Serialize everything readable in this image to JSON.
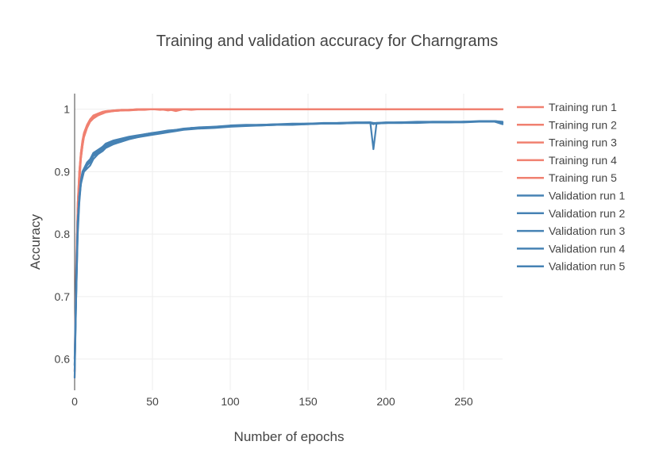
{
  "chart_data": {
    "type": "line",
    "title": "Training and validation accuracy for Charngrams",
    "xlabel": "Number of epochs",
    "ylabel": "Accuracy",
    "xlim": [
      0,
      275
    ],
    "ylim": [
      0.55,
      1.025
    ],
    "xticks": [
      0,
      50,
      100,
      150,
      200,
      250
    ],
    "xtick_labels": [
      "0",
      "50",
      "100",
      "150",
      "200",
      "250"
    ],
    "yticks": [
      0.6,
      0.7,
      0.8,
      0.9,
      1
    ],
    "ytick_labels": [
      "0.6",
      "0.7",
      "0.8",
      "0.9",
      "1"
    ],
    "grid": true,
    "legend_position": "right",
    "colors": {
      "training": "#f08070",
      "validation": "#4682b4"
    },
    "x": [
      0,
      1,
      2,
      3,
      4,
      5,
      6,
      8,
      10,
      12,
      15,
      18,
      20,
      25,
      30,
      35,
      40,
      45,
      50,
      55,
      60,
      65,
      70,
      75,
      80,
      90,
      100,
      110,
      120,
      130,
      140,
      150,
      160,
      170,
      180,
      190,
      192,
      194,
      200,
      210,
      220,
      230,
      240,
      250,
      260,
      270,
      275
    ],
    "series": [
      {
        "name": "Training run 1",
        "values": [
          0.57,
          0.72,
          0.83,
          0.88,
          0.92,
          0.94,
          0.955,
          0.97,
          0.98,
          0.985,
          0.99,
          0.993,
          0.995,
          0.997,
          0.998,
          0.998,
          0.999,
          0.999,
          1.0,
          0.999,
          1.0,
          1.0,
          1.0,
          1.0,
          1.0,
          1.0,
          1.0,
          1.0,
          1.0,
          1.0,
          1.0,
          1.0,
          1.0,
          1.0,
          1.0,
          1.0,
          1.0,
          1.0,
          1.0,
          1.0,
          1.0,
          1.0,
          1.0,
          1.0,
          1.0,
          1.0,
          1.0
        ]
      },
      {
        "name": "Training run 2",
        "values": [
          0.58,
          0.73,
          0.84,
          0.89,
          0.925,
          0.945,
          0.96,
          0.973,
          0.982,
          0.988,
          0.992,
          0.995,
          0.996,
          0.997,
          0.998,
          0.999,
          0.999,
          1.0,
          1.0,
          1.0,
          0.998,
          1.0,
          1.0,
          1.0,
          1.0,
          1.0,
          1.0,
          1.0,
          1.0,
          1.0,
          1.0,
          1.0,
          1.0,
          1.0,
          1.0,
          1.0,
          1.0,
          1.0,
          1.0,
          1.0,
          1.0,
          1.0,
          1.0,
          1.0,
          1.0,
          1.0,
          1.0
        ]
      },
      {
        "name": "Training run 3",
        "values": [
          0.59,
          0.74,
          0.85,
          0.9,
          0.93,
          0.95,
          0.962,
          0.975,
          0.984,
          0.99,
          0.993,
          0.996,
          0.997,
          0.998,
          0.999,
          0.999,
          1.0,
          1.0,
          1.0,
          1.0,
          1.0,
          0.997,
          1.0,
          1.0,
          1.0,
          1.0,
          1.0,
          1.0,
          1.0,
          1.0,
          1.0,
          1.0,
          1.0,
          1.0,
          1.0,
          1.0,
          1.0,
          1.0,
          1.0,
          1.0,
          1.0,
          1.0,
          1.0,
          1.0,
          1.0,
          1.0,
          1.0
        ]
      },
      {
        "name": "Training run 4",
        "values": [
          0.58,
          0.72,
          0.83,
          0.88,
          0.92,
          0.94,
          0.958,
          0.972,
          0.981,
          0.987,
          0.991,
          0.994,
          0.996,
          0.997,
          0.998,
          0.999,
          0.999,
          1.0,
          1.0,
          1.0,
          1.0,
          1.0,
          1.0,
          0.999,
          1.0,
          1.0,
          1.0,
          1.0,
          1.0,
          1.0,
          1.0,
          1.0,
          1.0,
          1.0,
          1.0,
          1.0,
          1.0,
          1.0,
          1.0,
          1.0,
          1.0,
          1.0,
          1.0,
          1.0,
          1.0,
          1.0,
          1.0
        ]
      },
      {
        "name": "Training run 5",
        "values": [
          0.6,
          0.75,
          0.85,
          0.9,
          0.93,
          0.948,
          0.962,
          0.975,
          0.984,
          0.989,
          0.993,
          0.995,
          0.997,
          0.998,
          0.999,
          0.999,
          1.0,
          1.0,
          1.0,
          1.0,
          1.0,
          1.0,
          1.0,
          1.0,
          1.0,
          1.0,
          1.0,
          1.0,
          1.0,
          1.0,
          1.0,
          1.0,
          1.0,
          1.0,
          1.0,
          1.0,
          1.0,
          1.0,
          1.0,
          1.0,
          1.0,
          1.0,
          1.0,
          1.0,
          1.0,
          1.0,
          1.0
        ]
      },
      {
        "name": "Validation run 1",
        "values": [
          0.58,
          0.7,
          0.8,
          0.85,
          0.88,
          0.895,
          0.9,
          0.91,
          0.915,
          0.925,
          0.93,
          0.935,
          0.94,
          0.945,
          0.948,
          0.952,
          0.955,
          0.958,
          0.96,
          0.962,
          0.964,
          0.966,
          0.968,
          0.969,
          0.97,
          0.971,
          0.973,
          0.974,
          0.975,
          0.975,
          0.976,
          0.977,
          0.977,
          0.978,
          0.978,
          0.978,
          0.976,
          0.978,
          0.978,
          0.979,
          0.979,
          0.979,
          0.979,
          0.98,
          0.98,
          0.98,
          0.979
        ]
      },
      {
        "name": "Validation run 2",
        "values": [
          0.59,
          0.72,
          0.82,
          0.86,
          0.885,
          0.9,
          0.905,
          0.915,
          0.92,
          0.93,
          0.935,
          0.94,
          0.945,
          0.95,
          0.953,
          0.956,
          0.958,
          0.96,
          0.962,
          0.964,
          0.966,
          0.967,
          0.969,
          0.97,
          0.971,
          0.972,
          0.974,
          0.975,
          0.975,
          0.976,
          0.977,
          0.977,
          0.978,
          0.978,
          0.979,
          0.979,
          0.936,
          0.977,
          0.978,
          0.979,
          0.98,
          0.98,
          0.98,
          0.98,
          0.981,
          0.981,
          0.98
        ]
      },
      {
        "name": "Validation run 3",
        "values": [
          0.6,
          0.73,
          0.82,
          0.86,
          0.88,
          0.89,
          0.9,
          0.905,
          0.91,
          0.92,
          0.928,
          0.933,
          0.938,
          0.944,
          0.948,
          0.952,
          0.955,
          0.957,
          0.959,
          0.961,
          0.963,
          0.965,
          0.967,
          0.968,
          0.969,
          0.97,
          0.972,
          0.973,
          0.974,
          0.975,
          0.975,
          0.976,
          0.977,
          0.977,
          0.978,
          0.978,
          0.977,
          0.978,
          0.978,
          0.978,
          0.979,
          0.979,
          0.979,
          0.98,
          0.98,
          0.98,
          0.978
        ]
      },
      {
        "name": "Validation run 4",
        "values": [
          0.57,
          0.7,
          0.81,
          0.855,
          0.88,
          0.895,
          0.902,
          0.912,
          0.918,
          0.926,
          0.932,
          0.937,
          0.942,
          0.947,
          0.95,
          0.954,
          0.957,
          0.959,
          0.961,
          0.963,
          0.965,
          0.966,
          0.968,
          0.97,
          0.97,
          0.971,
          0.973,
          0.974,
          0.974,
          0.975,
          0.976,
          0.976,
          0.977,
          0.977,
          0.978,
          0.978,
          0.977,
          0.977,
          0.978,
          0.978,
          0.978,
          0.979,
          0.979,
          0.979,
          0.98,
          0.98,
          0.976
        ]
      },
      {
        "name": "Validation run 5",
        "values": [
          0.59,
          0.71,
          0.82,
          0.86,
          0.885,
          0.898,
          0.904,
          0.914,
          0.92,
          0.928,
          0.934,
          0.938,
          0.943,
          0.948,
          0.951,
          0.955,
          0.957,
          0.96,
          0.962,
          0.963,
          0.965,
          0.967,
          0.968,
          0.97,
          0.97,
          0.972,
          0.973,
          0.974,
          0.975,
          0.976,
          0.976,
          0.977,
          0.977,
          0.978,
          0.978,
          0.979,
          0.978,
          0.978,
          0.979,
          0.979,
          0.979,
          0.98,
          0.98,
          0.98,
          0.98,
          0.981,
          0.979
        ]
      }
    ]
  }
}
